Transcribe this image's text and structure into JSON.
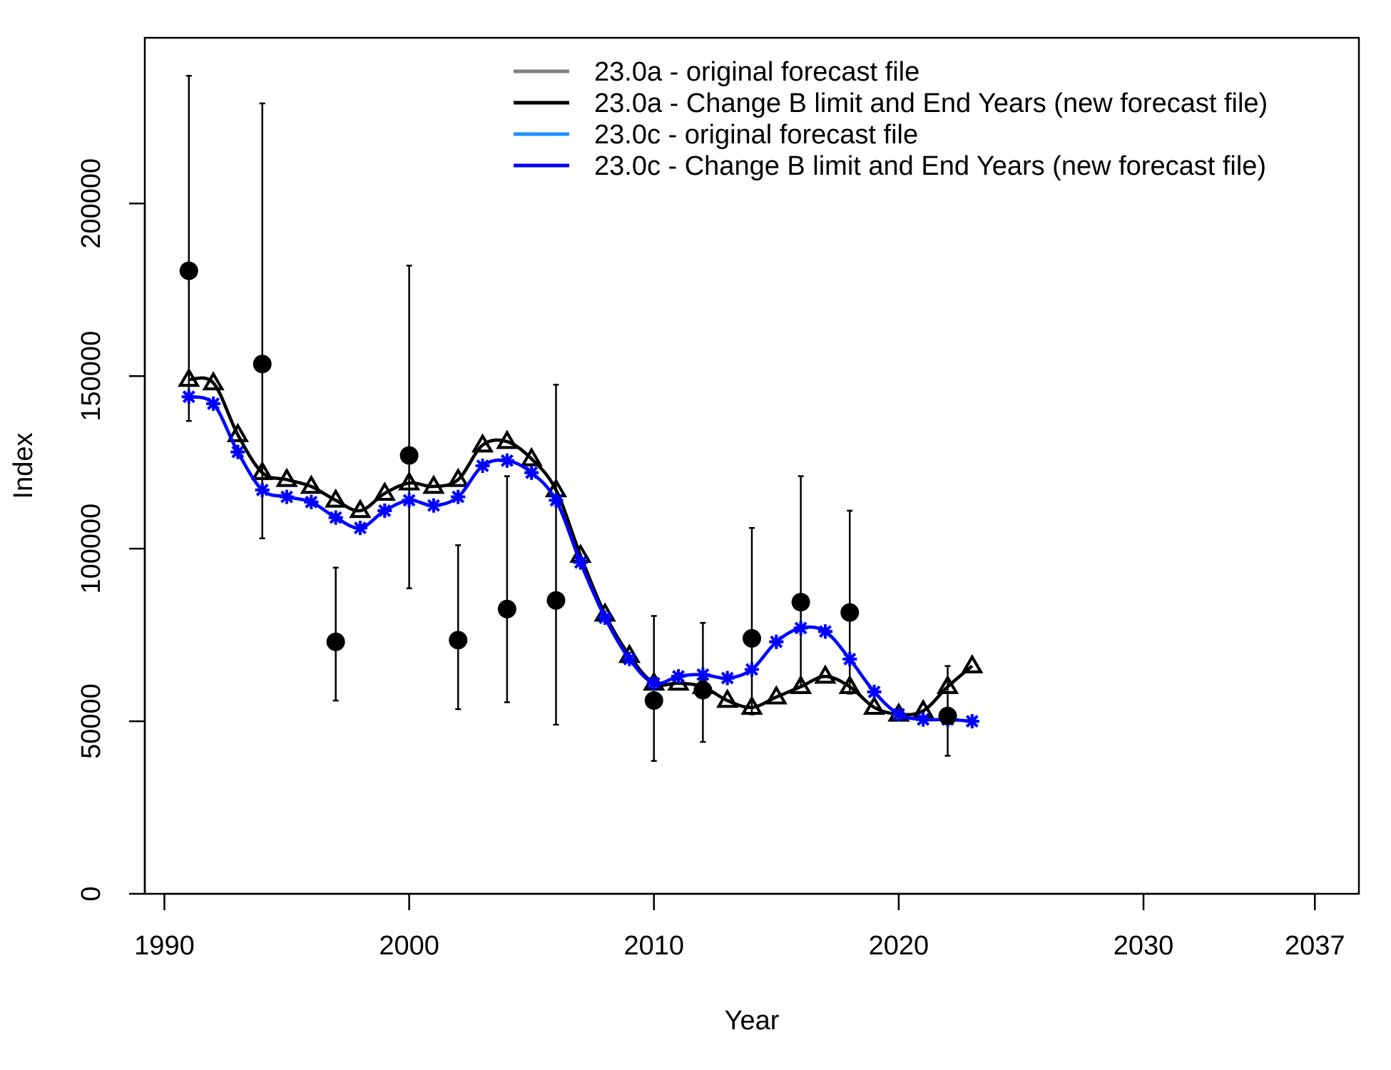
{
  "chart_data": {
    "type": "line",
    "title": "",
    "xlabel": "Year",
    "ylabel": "Index",
    "xlim": [
      1989.2,
      2038.8
    ],
    "ylim": [
      0,
      248000
    ],
    "x_ticks": [
      1990,
      2000,
      2010,
      2020,
      2030,
      2037
    ],
    "y_ticks": [
      0,
      50000,
      100000,
      150000,
      200000
    ],
    "legend": {
      "placement": "top-right"
    },
    "grid": false,
    "colors": {
      "s1": "#808080",
      "s2": "#000000",
      "s3": "#1E90FF",
      "s4": "#0000FF",
      "obs": "#000000"
    },
    "series": [
      {
        "name": "23.0a - original forecast file",
        "color": "#808080",
        "marker": "triangle",
        "x": [
          1991,
          1992,
          1993,
          1994,
          1995,
          1996,
          1997,
          1998,
          1999,
          2000,
          2001,
          2002,
          2003,
          2004,
          2005,
          2006,
          2007,
          2008,
          2009,
          2010,
          2011,
          2012,
          2013,
          2014,
          2015,
          2016,
          2017,
          2018,
          2019,
          2020,
          2021,
          2022,
          2023
        ],
        "values": [
          149000,
          148000,
          133000,
          122000,
          120000,
          118000,
          114000,
          111000,
          116000,
          119000,
          118000,
          120000,
          130000,
          131000,
          126000,
          117000,
          98000,
          81000,
          69000,
          61000,
          61000,
          60000,
          56000,
          54000,
          57000,
          60000,
          63000,
          60000,
          54000,
          52000,
          53000,
          60000,
          66000
        ]
      },
      {
        "name": "23.0a - Change B limit and End Years (new forecast file)",
        "color": "#000000",
        "marker": "triangle",
        "x": [
          1991,
          1992,
          1993,
          1994,
          1995,
          1996,
          1997,
          1998,
          1999,
          2000,
          2001,
          2002,
          2003,
          2004,
          2005,
          2006,
          2007,
          2008,
          2009,
          2010,
          2011,
          2012,
          2013,
          2014,
          2015,
          2016,
          2017,
          2018,
          2019,
          2020,
          2021,
          2022,
          2023
        ],
        "values": [
          149000,
          148000,
          133000,
          122000,
          120000,
          118000,
          114000,
          111000,
          116000,
          119000,
          118000,
          120000,
          130000,
          131000,
          126000,
          117000,
          98000,
          81000,
          69000,
          61000,
          61000,
          60000,
          56000,
          54000,
          57000,
          60000,
          63000,
          60000,
          54000,
          52000,
          53000,
          60000,
          66000
        ]
      },
      {
        "name": "23.0c - original forecast file",
        "color": "#1E90FF",
        "marker": "asterisk",
        "x": [
          1991,
          1992,
          1993,
          1994,
          1995,
          1996,
          1997,
          1998,
          1999,
          2000,
          2001,
          2002,
          2003,
          2004,
          2005,
          2006,
          2007,
          2008,
          2009,
          2010,
          2011,
          2012,
          2013,
          2014,
          2015,
          2016,
          2017,
          2018,
          2019,
          2020,
          2021,
          2022,
          2023
        ],
        "values": [
          144000,
          142000,
          128000,
          117000,
          115000,
          113500,
          109000,
          106000,
          111000,
          114000,
          112500,
          115000,
          124000,
          125500,
          122000,
          114000,
          96000,
          80000,
          68000,
          61000,
          63000,
          63500,
          62500,
          65000,
          73000,
          77000,
          76000,
          68000,
          58500,
          52000,
          50500,
          50500,
          50000
        ]
      },
      {
        "name": "23.0c - Change B limit and End Years (new forecast file)",
        "color": "#0000FF",
        "marker": "asterisk",
        "x": [
          1991,
          1992,
          1993,
          1994,
          1995,
          1996,
          1997,
          1998,
          1999,
          2000,
          2001,
          2002,
          2003,
          2004,
          2005,
          2006,
          2007,
          2008,
          2009,
          2010,
          2011,
          2012,
          2013,
          2014,
          2015,
          2016,
          2017,
          2018,
          2019,
          2020,
          2021,
          2022,
          2023
        ],
        "values": [
          144000,
          142000,
          128000,
          117000,
          115000,
          113500,
          109000,
          106000,
          111000,
          114000,
          112500,
          115000,
          124000,
          125500,
          122000,
          114000,
          96000,
          80000,
          68000,
          61000,
          63000,
          63500,
          62500,
          65000,
          73000,
          77000,
          76000,
          68000,
          58500,
          52000,
          50500,
          50500,
          50000
        ]
      }
    ],
    "observations": {
      "x": [
        1991,
        1994,
        1997,
        2000,
        2002,
        2004,
        2006,
        2010,
        2012,
        2014,
        2016,
        2018,
        2022
      ],
      "values": [
        180500,
        153500,
        73000,
        127000,
        73500,
        82500,
        85000,
        56000,
        59000,
        74000,
        84500,
        81500,
        51500
      ],
      "lower": [
        137000,
        103000,
        56000,
        88500,
        53500,
        55500,
        49000,
        38500,
        44000,
        52000,
        60000,
        58000,
        40000
      ],
      "upper": [
        237000,
        229000,
        94500,
        182000,
        101000,
        121000,
        147500,
        80500,
        78500,
        106000,
        121000,
        111000,
        66000
      ]
    }
  }
}
